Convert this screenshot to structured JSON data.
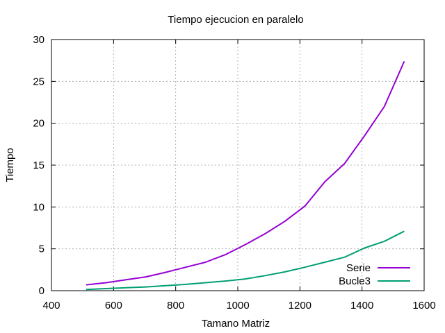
{
  "chart_data": {
    "type": "line",
    "title": "Tiempo ejecucion en paralelo",
    "xlabel": "Tamano Matriz",
    "ylabel": "Tiempo",
    "xlim": [
      400,
      1600
    ],
    "ylim": [
      0,
      30
    ],
    "xticks": [
      400,
      600,
      800,
      1000,
      1200,
      1400,
      1600
    ],
    "yticks": [
      0,
      5,
      10,
      15,
      20,
      25,
      30
    ],
    "grid": true,
    "legend_position": "bottom-right",
    "series": [
      {
        "name": "Serie",
        "color": "#9400d3",
        "x": [
          512,
          576,
          640,
          704,
          768,
          832,
          896,
          960,
          1024,
          1088,
          1152,
          1216,
          1280,
          1344,
          1408,
          1472,
          1536
        ],
        "y": [
          0.7,
          0.95,
          1.3,
          1.65,
          2.2,
          2.8,
          3.4,
          4.3,
          5.5,
          6.8,
          8.3,
          10.1,
          13.0,
          15.2,
          18.5,
          22.0,
          27.4
        ]
      },
      {
        "name": "Bucle3",
        "color": "#009e73",
        "x": [
          512,
          576,
          640,
          704,
          768,
          832,
          896,
          960,
          1024,
          1088,
          1152,
          1216,
          1280,
          1344,
          1408,
          1472,
          1536
        ],
        "y": [
          0.15,
          0.25,
          0.35,
          0.45,
          0.6,
          0.75,
          0.95,
          1.15,
          1.4,
          1.8,
          2.25,
          2.8,
          3.4,
          4.0,
          5.1,
          5.9,
          7.1
        ]
      }
    ]
  }
}
